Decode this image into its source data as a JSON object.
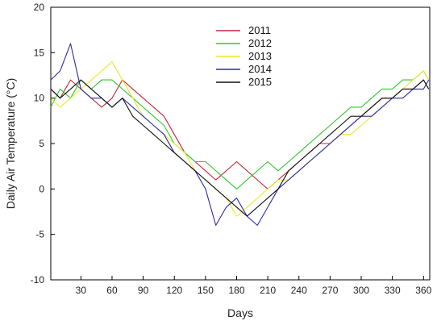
{
  "chart_data": {
    "type": "line",
    "title": "",
    "xlabel": "Days",
    "ylabel": "Daily Air Temperature (°C)",
    "xlim": [
      1,
      366
    ],
    "ylim": [
      -10,
      20
    ],
    "xticks": [
      30,
      60,
      90,
      120,
      150,
      180,
      210,
      240,
      270,
      300,
      330,
      360
    ],
    "yticks": [
      -10,
      -5,
      0,
      5,
      10,
      15,
      20
    ],
    "grid": false,
    "legend_position": "top-center",
    "series": [
      {
        "name": "2011",
        "color": "#c0283c",
        "x": [
          1,
          10,
          20,
          30,
          40,
          50,
          60,
          70,
          80,
          90,
          100,
          110,
          120,
          130,
          140,
          150,
          160,
          170,
          180,
          190,
          200,
          210,
          220,
          230,
          240,
          250,
          260,
          270,
          280,
          290,
          300,
          310,
          320,
          330,
          340,
          350,
          360,
          365
        ],
        "y": [
          11,
          10,
          12,
          11,
          10,
          9,
          10,
          12,
          11,
          10,
          9,
          8,
          6,
          4,
          3,
          2,
          1,
          2,
          3,
          2,
          1,
          0,
          1,
          2,
          3,
          4,
          5,
          5,
          6,
          7,
          8,
          9,
          10,
          10,
          11,
          11,
          12,
          11
        ]
      },
      {
        "name": "2012",
        "color": "#2ec82e",
        "x": [
          1,
          10,
          20,
          30,
          40,
          50,
          60,
          70,
          80,
          90,
          100,
          110,
          120,
          130,
          140,
          150,
          160,
          170,
          180,
          190,
          200,
          210,
          220,
          230,
          240,
          250,
          260,
          270,
          280,
          290,
          300,
          310,
          320,
          330,
          340,
          350,
          360,
          365
        ],
        "y": [
          9,
          11,
          10,
          12,
          11,
          12,
          12,
          11,
          10,
          9,
          8,
          7,
          5,
          4,
          3,
          3,
          2,
          1,
          0,
          1,
          2,
          3,
          2,
          3,
          4,
          5,
          6,
          7,
          8,
          9,
          9,
          10,
          11,
          11,
          12,
          12,
          13,
          12
        ]
      },
      {
        "name": "2013",
        "color": "#eaea2a",
        "x": [
          1,
          10,
          20,
          30,
          40,
          50,
          60,
          70,
          80,
          90,
          100,
          110,
          120,
          130,
          140,
          150,
          160,
          170,
          180,
          190,
          200,
          210,
          220,
          230,
          240,
          250,
          260,
          270,
          280,
          290,
          300,
          310,
          320,
          330,
          340,
          350,
          360,
          365
        ],
        "y": [
          10,
          9,
          10,
          11,
          12,
          13,
          14,
          12,
          10,
          8,
          7,
          6,
          5,
          4,
          2,
          1,
          0,
          -1,
          -3,
          -2,
          -1,
          0,
          1,
          1,
          2,
          3,
          4,
          5,
          6,
          6,
          7,
          8,
          9,
          10,
          11,
          12,
          13,
          12
        ]
      },
      {
        "name": "2014",
        "color": "#2a2aa8",
        "x": [
          1,
          10,
          20,
          30,
          40,
          50,
          60,
          70,
          80,
          90,
          100,
          110,
          120,
          130,
          140,
          150,
          160,
          170,
          180,
          190,
          200,
          210,
          220,
          230,
          240,
          250,
          260,
          270,
          280,
          290,
          300,
          310,
          320,
          330,
          340,
          350,
          360,
          365
        ],
        "y": [
          12,
          13,
          16,
          11,
          10,
          10,
          9,
          10,
          9,
          8,
          7,
          6,
          4,
          3,
          2,
          0,
          -4,
          -2,
          -1,
          -3,
          -4,
          -2,
          0,
          1,
          2,
          3,
          4,
          5,
          6,
          7,
          8,
          8,
          9,
          10,
          10,
          11,
          11,
          12
        ]
      },
      {
        "name": "2015",
        "color": "#111111",
        "x": [
          1,
          10,
          20,
          30,
          40,
          50,
          60,
          70,
          80,
          90,
          100,
          110,
          120,
          130,
          140,
          150,
          160,
          170,
          180,
          190,
          200,
          210,
          220,
          230,
          240,
          250,
          260,
          270,
          280,
          290,
          300,
          310,
          320,
          330,
          340,
          350,
          360,
          365
        ],
        "y": [
          11,
          10,
          11,
          12,
          11,
          10,
          9,
          10,
          8,
          7,
          6,
          5,
          4,
          3,
          2,
          1,
          0,
          -1,
          -2,
          -3,
          -2,
          -1,
          0,
          2,
          3,
          4,
          5,
          6,
          7,
          8,
          8,
          9,
          10,
          10,
          11,
          11,
          12,
          11
        ]
      }
    ]
  }
}
